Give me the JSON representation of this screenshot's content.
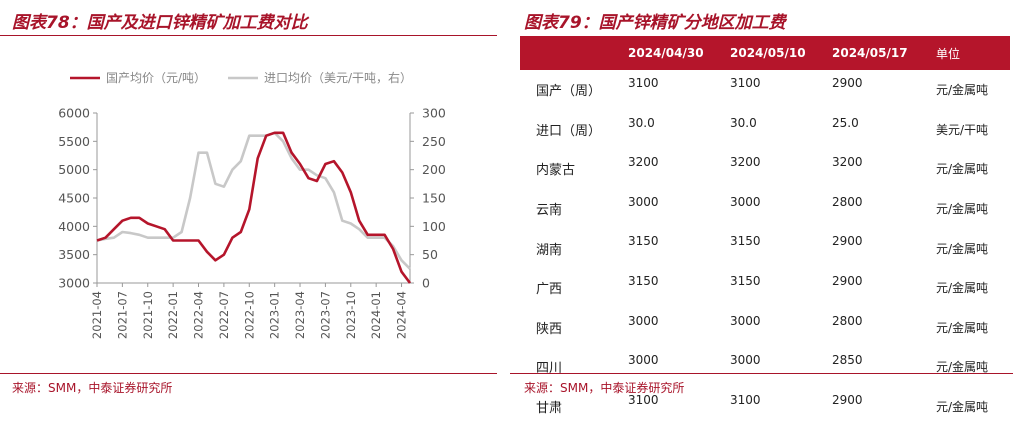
{
  "left_panel": {
    "title": "图表78：国产及进口锌精矿加工费对比",
    "source": "来源：SMM，中泰证券研究所"
  },
  "right_panel": {
    "title": "图表79：国产锌精矿分地区加工费",
    "source": "来源：SMM，中泰证券研究所"
  },
  "chart_data": {
    "type": "line",
    "title": "",
    "x_tick_labels": [
      "2021-04",
      "2021-07",
      "2021-10",
      "2022-01",
      "2022-04",
      "2022-07",
      "2022-10",
      "2023-01",
      "2023-04",
      "2023-07",
      "2023-10",
      "2024-01",
      "2024-04"
    ],
    "y_left": {
      "range": [
        3000,
        6000
      ],
      "ticks": [
        "3000",
        "3500",
        "4000",
        "4500",
        "5000",
        "5500",
        "6000"
      ]
    },
    "y_right": {
      "range": [
        0,
        300
      ],
      "ticks": [
        "0",
        "50",
        "100",
        "150",
        "200",
        "250",
        "300"
      ]
    },
    "grid": false,
    "legend_position": "top",
    "series": [
      {
        "name": "国产均价（元/吨）",
        "axis": "left",
        "color": "#b5152b",
        "points": [
          [
            "2021-04",
            3750
          ],
          [
            "2021-05",
            3800
          ],
          [
            "2021-06",
            3950
          ],
          [
            "2021-07",
            4100
          ],
          [
            "2021-08",
            4150
          ],
          [
            "2021-09",
            4150
          ],
          [
            "2021-10",
            4050
          ],
          [
            "2021-11",
            4000
          ],
          [
            "2021-12",
            3950
          ],
          [
            "2022-01",
            3750
          ],
          [
            "2022-02",
            3750
          ],
          [
            "2022-03",
            3750
          ],
          [
            "2022-04",
            3750
          ],
          [
            "2022-05",
            3550
          ],
          [
            "2022-06",
            3400
          ],
          [
            "2022-07",
            3500
          ],
          [
            "2022-08",
            3800
          ],
          [
            "2022-09",
            3900
          ],
          [
            "2022-10",
            4300
          ],
          [
            "2022-11",
            5200
          ],
          [
            "2022-12",
            5600
          ],
          [
            "2023-01",
            5650
          ],
          [
            "2023-02",
            5650
          ],
          [
            "2023-03",
            5300
          ],
          [
            "2023-04",
            5100
          ],
          [
            "2023-05",
            4850
          ],
          [
            "2023-06",
            4800
          ],
          [
            "2023-07",
            5100
          ],
          [
            "2023-08",
            5150
          ],
          [
            "2023-09",
            4950
          ],
          [
            "2023-10",
            4600
          ],
          [
            "2023-11",
            4100
          ],
          [
            "2023-12",
            3850
          ],
          [
            "2024-01",
            3850
          ],
          [
            "2024-02",
            3850
          ],
          [
            "2024-03",
            3600
          ],
          [
            "2024-04",
            3200
          ],
          [
            "2024-05",
            3000
          ]
        ]
      },
      {
        "name": "进口均价（美元/干吨，右）",
        "axis": "right",
        "color": "#c8c8c8",
        "points": [
          [
            "2021-04",
            75
          ],
          [
            "2021-05",
            78
          ],
          [
            "2021-06",
            80
          ],
          [
            "2021-07",
            90
          ],
          [
            "2021-08",
            88
          ],
          [
            "2021-09",
            85
          ],
          [
            "2021-10",
            80
          ],
          [
            "2021-11",
            80
          ],
          [
            "2021-12",
            80
          ],
          [
            "2022-01",
            80
          ],
          [
            "2022-02",
            90
          ],
          [
            "2022-03",
            150
          ],
          [
            "2022-04",
            230
          ],
          [
            "2022-05",
            230
          ],
          [
            "2022-06",
            175
          ],
          [
            "2022-07",
            170
          ],
          [
            "2022-08",
            200
          ],
          [
            "2022-09",
            215
          ],
          [
            "2022-10",
            260
          ],
          [
            "2022-11",
            260
          ],
          [
            "2022-12",
            260
          ],
          [
            "2023-01",
            265
          ],
          [
            "2023-02",
            250
          ],
          [
            "2023-03",
            220
          ],
          [
            "2023-04",
            200
          ],
          [
            "2023-05",
            200
          ],
          [
            "2023-06",
            190
          ],
          [
            "2023-07",
            185
          ],
          [
            "2023-08",
            160
          ],
          [
            "2023-09",
            110
          ],
          [
            "2023-10",
            105
          ],
          [
            "2023-11",
            95
          ],
          [
            "2023-12",
            80
          ],
          [
            "2024-01",
            80
          ],
          [
            "2024-02",
            80
          ],
          [
            "2024-03",
            65
          ],
          [
            "2024-04",
            40
          ],
          [
            "2024-05",
            25
          ]
        ]
      }
    ]
  },
  "table": {
    "headers": [
      "",
      "2024/04/30",
      "2024/05/10",
      "2024/05/17",
      "单位"
    ],
    "rows": [
      [
        "国产（周）",
        "3100",
        "3100",
        "2900",
        "元/金属吨"
      ],
      [
        "进口（周）",
        "30.0",
        "30.0",
        "25.0",
        "美元/干吨"
      ],
      [
        "内蒙古",
        "3200",
        "3200",
        "3200",
        "元/金属吨"
      ],
      [
        "云南",
        "3000",
        "3000",
        "2800",
        "元/金属吨"
      ],
      [
        "湖南",
        "3150",
        "3150",
        "2900",
        "元/金属吨"
      ],
      [
        "广西",
        "3150",
        "3150",
        "2900",
        "元/金属吨"
      ],
      [
        "陕西",
        "3000",
        "3000",
        "2800",
        "元/金属吨"
      ],
      [
        "四川",
        "3000",
        "3000",
        "2850",
        "元/金属吨"
      ],
      [
        "甘肃",
        "3100",
        "3100",
        "2900",
        "元/金属吨"
      ]
    ]
  }
}
